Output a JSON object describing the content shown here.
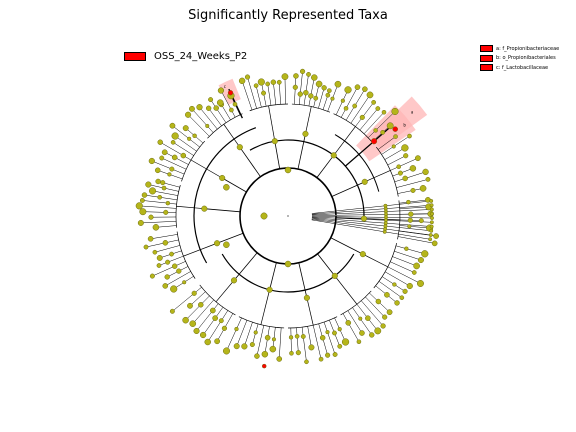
{
  "chart_data": {
    "type": "cladogram",
    "title": "Significantly Represented Taxa",
    "legend": {
      "placement": "top-left",
      "entries": [
        {
          "name": "OSS_24_Weeks_P2",
          "color": "#ff0000"
        }
      ]
    },
    "clade_legend": {
      "placement": "top-right",
      "entries": [
        {
          "letter": "a",
          "label": "a: f_Propionibacteriaceae",
          "color": "#ff0000"
        },
        {
          "letter": "b",
          "label": "b: o_Propionibacteriales",
          "color": "#ff0000"
        },
        {
          "letter": "c",
          "label": "c: f_Lactobacillaceae",
          "color": "#ff0000"
        }
      ]
    },
    "highlighted_clades": [
      {
        "letter": "a",
        "group": "OSS_24_Weeks_P2"
      },
      {
        "letter": "b",
        "group": "OSS_24_Weeks_P2"
      },
      {
        "letter": "c",
        "group": "OSS_24_Weeks_P2"
      }
    ],
    "colors": {
      "node": "#b5b51a",
      "node_stroke": "#6b6b10",
      "highlight": "#ff0000",
      "highlight_shade": "#ffb6b6",
      "edge": "#000000"
    }
  }
}
